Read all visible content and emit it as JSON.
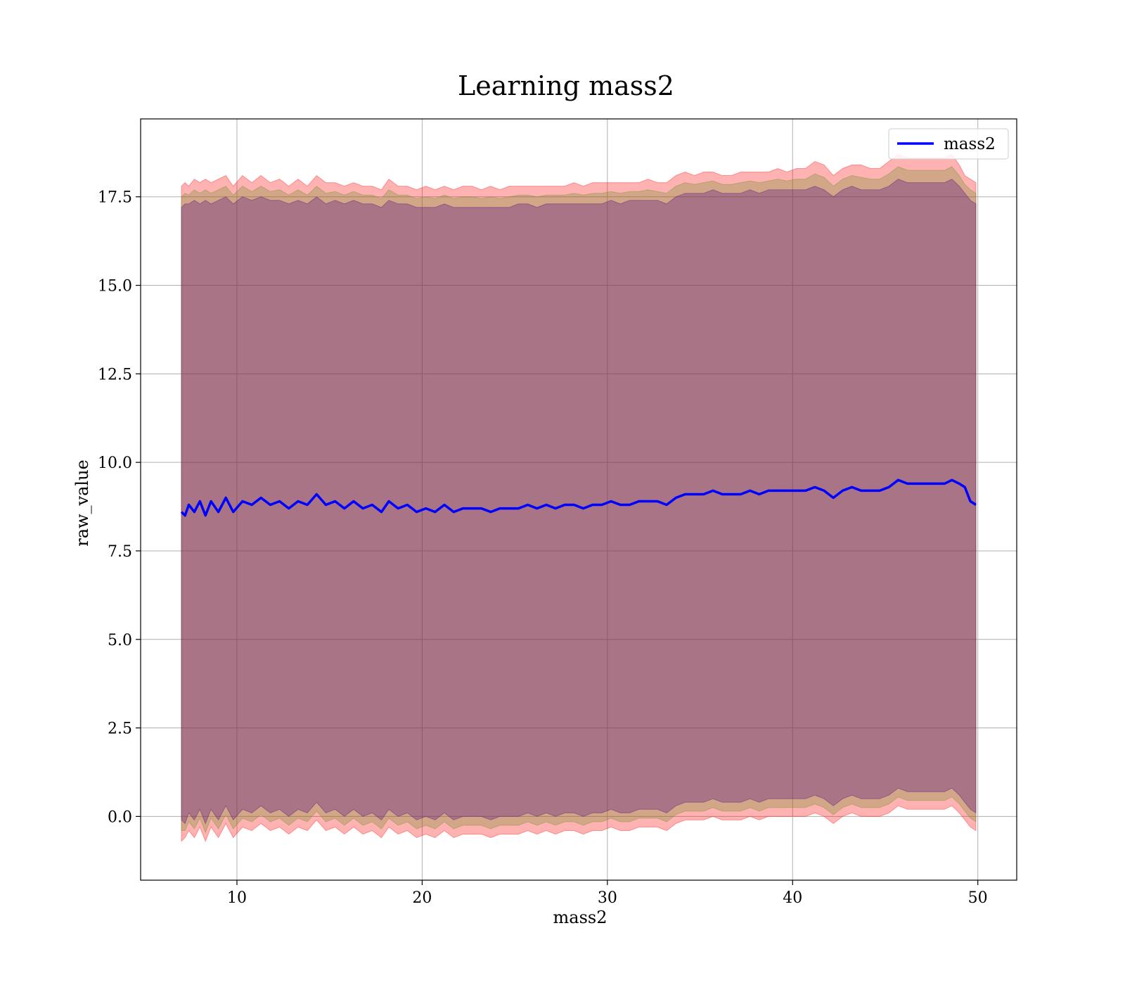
{
  "chart_data": {
    "type": "area",
    "title": "Learning mass2",
    "xlabel": "mass2",
    "ylabel": "raw_value",
    "xlim": [
      4.8,
      52.1
    ],
    "ylim": [
      -1.8,
      19.7
    ],
    "xticks": [
      10,
      20,
      30,
      40,
      50
    ],
    "yticks": [
      0.0,
      2.5,
      5.0,
      7.5,
      10.0,
      12.5,
      15.0,
      17.5
    ],
    "grid": true,
    "legend_position": "top-right",
    "colors": {
      "line": "#0000ff",
      "outer_band": "#ff0000",
      "middle_band": "#6b8e23",
      "inner_band": "#4b0082",
      "grid": "#b0b0b0"
    },
    "series": [
      {
        "name": "mass2",
        "x": [
          7.0,
          7.2,
          7.4,
          7.7,
          8.0,
          8.3,
          8.6,
          9.0,
          9.4,
          9.8,
          10.3,
          10.8,
          11.3,
          11.8,
          12.3,
          12.8,
          13.3,
          13.8,
          14.3,
          14.8,
          15.3,
          15.8,
          16.3,
          16.8,
          17.3,
          17.8,
          18.2,
          18.7,
          19.2,
          19.7,
          20.2,
          20.7,
          21.2,
          21.7,
          22.2,
          22.7,
          23.2,
          23.7,
          24.2,
          24.7,
          25.2,
          25.7,
          26.2,
          26.7,
          27.2,
          27.7,
          28.2,
          28.7,
          29.2,
          29.7,
          30.2,
          30.7,
          31.2,
          31.7,
          32.2,
          32.7,
          33.2,
          33.7,
          34.2,
          34.7,
          35.2,
          35.7,
          36.2,
          36.7,
          37.2,
          37.7,
          38.2,
          38.7,
          39.2,
          39.7,
          40.2,
          40.7,
          41.2,
          41.7,
          42.2,
          42.7,
          43.2,
          43.7,
          44.2,
          44.7,
          45.2,
          45.7,
          46.2,
          46.7,
          47.2,
          47.7,
          48.2,
          48.6,
          49.0,
          49.3,
          49.6,
          49.9
        ],
        "mean": [
          8.6,
          8.5,
          8.8,
          8.6,
          8.9,
          8.5,
          8.9,
          8.6,
          9.0,
          8.6,
          8.9,
          8.8,
          9.0,
          8.8,
          8.9,
          8.7,
          8.9,
          8.8,
          9.1,
          8.8,
          8.9,
          8.7,
          8.9,
          8.7,
          8.8,
          8.6,
          8.9,
          8.7,
          8.8,
          8.6,
          8.7,
          8.6,
          8.8,
          8.6,
          8.7,
          8.7,
          8.7,
          8.6,
          8.7,
          8.7,
          8.7,
          8.8,
          8.7,
          8.8,
          8.7,
          8.8,
          8.8,
          8.7,
          8.8,
          8.8,
          8.9,
          8.8,
          8.8,
          8.9,
          8.9,
          8.9,
          8.8,
          9.0,
          9.1,
          9.1,
          9.1,
          9.2,
          9.1,
          9.1,
          9.1,
          9.2,
          9.1,
          9.2,
          9.2,
          9.2,
          9.2,
          9.2,
          9.3,
          9.2,
          9.0,
          9.2,
          9.3,
          9.2,
          9.2,
          9.2,
          9.3,
          9.5,
          9.4,
          9.4,
          9.4,
          9.4,
          9.4,
          9.5,
          9.4,
          9.3,
          8.9,
          8.8
        ],
        "outer_upper": [
          17.8,
          17.9,
          17.8,
          18.0,
          17.9,
          18.0,
          17.9,
          18.0,
          18.1,
          17.8,
          18.1,
          17.9,
          18.1,
          17.9,
          18.0,
          17.8,
          18.0,
          17.8,
          18.1,
          17.9,
          17.9,
          17.8,
          17.9,
          17.8,
          17.8,
          17.7,
          18.0,
          17.8,
          17.8,
          17.7,
          17.8,
          17.7,
          17.8,
          17.7,
          17.8,
          17.8,
          17.7,
          17.8,
          17.7,
          17.8,
          17.8,
          17.8,
          17.8,
          17.8,
          17.8,
          17.8,
          17.9,
          17.8,
          17.9,
          17.9,
          17.9,
          17.9,
          17.9,
          17.9,
          18.0,
          17.9,
          17.9,
          18.1,
          18.2,
          18.1,
          18.2,
          18.2,
          18.1,
          18.1,
          18.2,
          18.2,
          18.2,
          18.2,
          18.3,
          18.2,
          18.3,
          18.3,
          18.5,
          18.4,
          18.1,
          18.3,
          18.4,
          18.4,
          18.3,
          18.3,
          18.5,
          18.7,
          18.6,
          18.6,
          18.6,
          18.6,
          18.6,
          18.7,
          18.4,
          18.1,
          18.0,
          17.9
        ],
        "inner_upper": [
          17.2,
          17.3,
          17.3,
          17.4,
          17.3,
          17.4,
          17.3,
          17.4,
          17.5,
          17.3,
          17.5,
          17.4,
          17.5,
          17.4,
          17.4,
          17.3,
          17.4,
          17.3,
          17.5,
          17.3,
          17.4,
          17.3,
          17.4,
          17.3,
          17.3,
          17.2,
          17.4,
          17.3,
          17.3,
          17.2,
          17.2,
          17.2,
          17.3,
          17.2,
          17.2,
          17.2,
          17.2,
          17.2,
          17.2,
          17.2,
          17.3,
          17.3,
          17.2,
          17.3,
          17.3,
          17.3,
          17.3,
          17.3,
          17.3,
          17.3,
          17.4,
          17.3,
          17.4,
          17.4,
          17.4,
          17.4,
          17.3,
          17.5,
          17.6,
          17.6,
          17.6,
          17.7,
          17.6,
          17.6,
          17.6,
          17.7,
          17.6,
          17.7,
          17.7,
          17.7,
          17.7,
          17.7,
          17.8,
          17.7,
          17.5,
          17.7,
          17.8,
          17.7,
          17.7,
          17.7,
          17.8,
          18.0,
          17.9,
          17.9,
          17.9,
          17.9,
          17.9,
          18.0,
          17.8,
          17.6,
          17.4,
          17.3
        ],
        "inner_lower": [
          -0.1,
          -0.2,
          0.1,
          -0.1,
          0.2,
          -0.2,
          0.2,
          -0.1,
          0.3,
          -0.1,
          0.2,
          0.1,
          0.3,
          0.1,
          0.2,
          0.0,
          0.2,
          0.1,
          0.4,
          0.1,
          0.2,
          0.0,
          0.2,
          0.0,
          0.1,
          -0.1,
          0.2,
          0.0,
          0.1,
          -0.1,
          0.0,
          -0.1,
          0.1,
          -0.1,
          0.0,
          0.0,
          0.0,
          -0.1,
          0.0,
          0.0,
          0.0,
          0.1,
          0.0,
          0.1,
          0.0,
          0.1,
          0.1,
          0.0,
          0.1,
          0.1,
          0.2,
          0.1,
          0.1,
          0.2,
          0.2,
          0.2,
          0.1,
          0.3,
          0.4,
          0.4,
          0.4,
          0.5,
          0.4,
          0.4,
          0.4,
          0.5,
          0.4,
          0.5,
          0.5,
          0.5,
          0.5,
          0.5,
          0.6,
          0.5,
          0.3,
          0.5,
          0.6,
          0.5,
          0.5,
          0.5,
          0.6,
          0.8,
          0.7,
          0.7,
          0.7,
          0.7,
          0.7,
          0.8,
          0.6,
          0.4,
          0.2,
          0.1
        ],
        "outer_lower": [
          -0.7,
          -0.6,
          -0.4,
          -0.6,
          -0.3,
          -0.7,
          -0.3,
          -0.6,
          -0.2,
          -0.6,
          -0.3,
          -0.4,
          -0.2,
          -0.4,
          -0.3,
          -0.5,
          -0.3,
          -0.4,
          -0.1,
          -0.4,
          -0.3,
          -0.5,
          -0.3,
          -0.5,
          -0.4,
          -0.6,
          -0.3,
          -0.5,
          -0.4,
          -0.6,
          -0.5,
          -0.6,
          -0.4,
          -0.6,
          -0.5,
          -0.5,
          -0.5,
          -0.6,
          -0.5,
          -0.5,
          -0.5,
          -0.4,
          -0.5,
          -0.4,
          -0.5,
          -0.4,
          -0.4,
          -0.5,
          -0.4,
          -0.4,
          -0.3,
          -0.4,
          -0.4,
          -0.3,
          -0.3,
          -0.3,
          -0.4,
          -0.2,
          -0.1,
          -0.1,
          -0.1,
          0.0,
          -0.1,
          -0.1,
          -0.1,
          0.0,
          -0.1,
          0.0,
          0.0,
          0.0,
          0.0,
          0.0,
          0.1,
          0.0,
          -0.2,
          0.0,
          0.1,
          0.0,
          0.0,
          0.0,
          0.1,
          0.3,
          0.2,
          0.2,
          0.2,
          0.2,
          0.2,
          0.3,
          0.1,
          -0.1,
          -0.3,
          -0.4
        ]
      }
    ]
  }
}
